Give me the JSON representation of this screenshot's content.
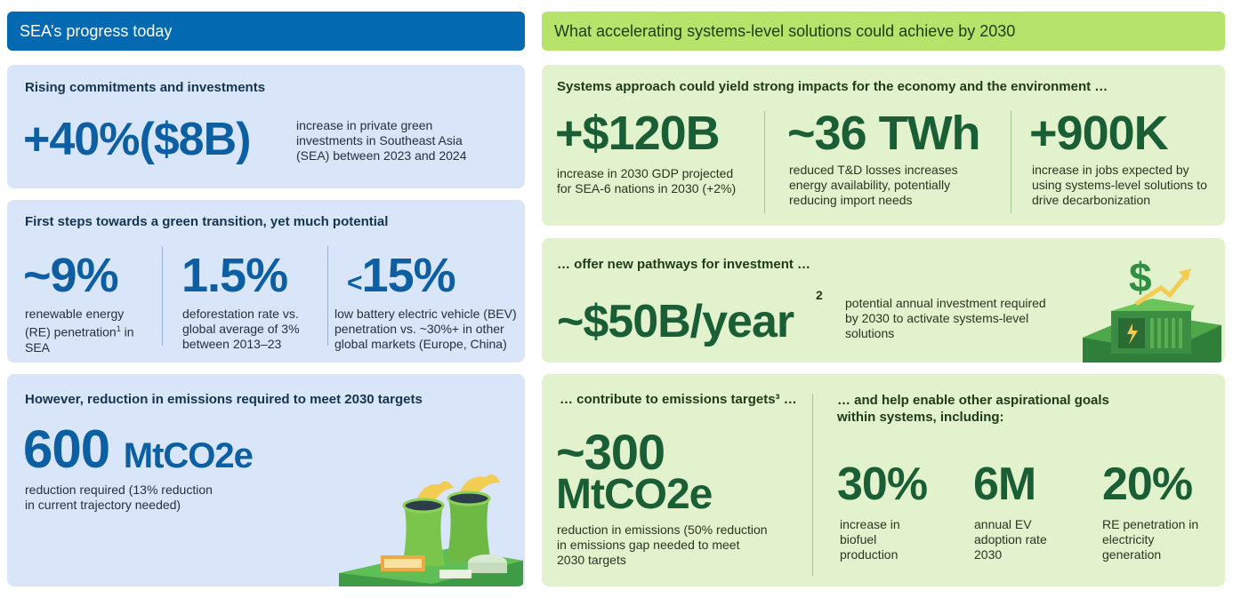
{
  "left": {
    "header": "SEA’s progress today",
    "card1": {
      "title": "Rising commitments and investments",
      "value": "+40%($8B)",
      "desc": "increase in private green investments in Southeast Asia (SEA) between 2023 and 2024"
    },
    "card2": {
      "title": "First steps towards a green transition, yet much potential",
      "stats": [
        {
          "value": "~9%",
          "desc": "renewable energy (RE) penetration",
          "footnote": "1",
          "desc_end": "in SEA"
        },
        {
          "value": "1.5%",
          "desc": "deforestation rate vs. global average of 3% between 2013–23"
        },
        {
          "prefix": "<",
          "value": "15%",
          "desc": "low battery electric vehicle (BEV) penetration vs. ~30%+ in other global markets (Europe, China)"
        }
      ]
    },
    "card3": {
      "title": "However, reduction in emissions required to meet 2030 targets",
      "value_num": "600",
      "value_unit": "MtCO2e",
      "desc": "reduction required (13% reduction in current trajectory needed)"
    }
  },
  "right": {
    "header": "What accelerating systems-level solutions could achieve by 2030",
    "card1": {
      "title": "Systems approach could yield strong impacts for the economy and the environment …",
      "stats": [
        {
          "value": "+$120B",
          "desc": "increase in 2030 GDP projected for SEA-6 nations in 2030 (+2%)"
        },
        {
          "value": "~36 TWh",
          "desc": "reduced T&D losses increases energy availability, potentially reducing import needs"
        },
        {
          "value": "+900K",
          "desc": "increase in jobs expected by using systems-level solutions to drive decarbonization"
        }
      ]
    },
    "card2": {
      "title": "… offer new pathways for investment …",
      "value": "~$50B/year",
      "footnote": "2",
      "desc": "potential annual investment required by 2030 to activate systems-level solutions"
    },
    "card3": {
      "title_left": "… contribute to emissions targets³ …",
      "value_line1": "~300",
      "value_line2": "MtCO2e",
      "desc_left": "reduction in emissions (50% reduction in emissions gap needed to meet 2030 targets",
      "title_right": "… and help enable other aspirational goals within systems, including:",
      "goals": [
        {
          "value": "30%",
          "desc": "increase in biofuel production"
        },
        {
          "value": "6M",
          "desc": "annual EV adoption rate 2030"
        },
        {
          "value": "20%",
          "desc": "RE penetration in electricity generation"
        }
      ]
    }
  },
  "colors": {
    "blue_header": "#0369b0",
    "blue_card": "#d9e5f8",
    "green_header": "#b6e36a",
    "green_card": "#e2f2cc",
    "blue_number": "#0b5fa2",
    "green_number": "#1a5e36"
  },
  "icons": [
    "power-plant-illustration",
    "dollar-investment-illustration"
  ]
}
